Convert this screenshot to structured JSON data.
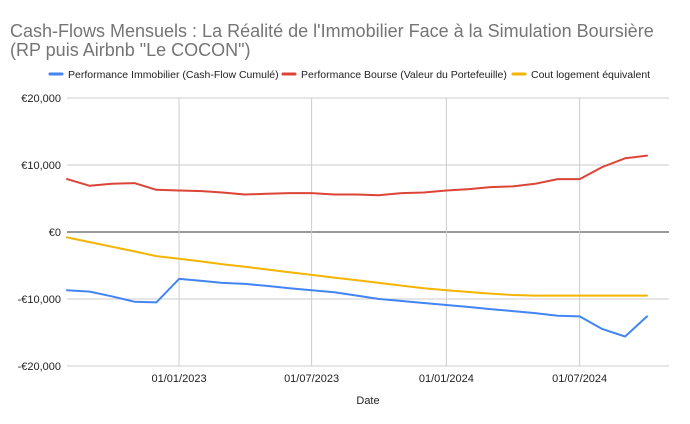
{
  "title": "Cash-Flows Mensuels : La Réalité de l'Immobilier Face à la Simulation Boursière (RP puis Airbnb \"Le COCON\")",
  "chart_data": {
    "type": "line",
    "title": "Cash-Flows Mensuels : La Réalité de l'Immobilier Face à la Simulation Boursière (RP puis Airbnb \"Le COCON\")",
    "xlabel": "Date",
    "ylabel": "",
    "ylim": [
      -20000,
      20000
    ],
    "xlim": [
      "2022-08-01",
      "2024-10-31"
    ],
    "grid": true,
    "legend": "top",
    "y_ticks": [
      {
        "value": 20000,
        "label": "€20,000"
      },
      {
        "value": 10000,
        "label": "€10,000"
      },
      {
        "value": 0,
        "label": "€0"
      },
      {
        "value": -10000,
        "label": "-€10,000"
      },
      {
        "value": -20000,
        "label": "-€20,000"
      }
    ],
    "x_ticks": [
      {
        "value": "2023-01-01",
        "label": "01/01/2023"
      },
      {
        "value": "2023-07-01",
        "label": "01/07/2023"
      },
      {
        "value": "2024-01-01",
        "label": "01/01/2024"
      },
      {
        "value": "2024-07-01",
        "label": "01/07/2024"
      }
    ],
    "series": [
      {
        "name": "Performance Immobilier (Cash-Flow Cumulé)",
        "color": "#4285f4",
        "points": [
          {
            "x": "2022-08-01",
            "y": -8700
          },
          {
            "x": "2022-09-01",
            "y": -8900
          },
          {
            "x": "2022-10-01",
            "y": -9600
          },
          {
            "x": "2022-11-01",
            "y": -10400
          },
          {
            "x": "2022-12-01",
            "y": -10500
          },
          {
            "x": "2023-01-01",
            "y": -7000
          },
          {
            "x": "2023-02-01",
            "y": -7300
          },
          {
            "x": "2023-03-01",
            "y": -7600
          },
          {
            "x": "2023-04-01",
            "y": -7750
          },
          {
            "x": "2023-05-01",
            "y": -8050
          },
          {
            "x": "2023-06-01",
            "y": -8400
          },
          {
            "x": "2023-07-01",
            "y": -8700
          },
          {
            "x": "2023-08-01",
            "y": -9000
          },
          {
            "x": "2023-09-01",
            "y": -9500
          },
          {
            "x": "2023-10-01",
            "y": -10000
          },
          {
            "x": "2023-11-01",
            "y": -10300
          },
          {
            "x": "2023-12-01",
            "y": -10600
          },
          {
            "x": "2024-01-01",
            "y": -10900
          },
          {
            "x": "2024-02-01",
            "y": -11200
          },
          {
            "x": "2024-03-01",
            "y": -11500
          },
          {
            "x": "2024-04-01",
            "y": -11800
          },
          {
            "x": "2024-05-01",
            "y": -12100
          },
          {
            "x": "2024-06-01",
            "y": -12500
          },
          {
            "x": "2024-07-01",
            "y": -12600
          },
          {
            "x": "2024-08-01",
            "y": -14500
          },
          {
            "x": "2024-09-01",
            "y": -15600
          },
          {
            "x": "2024-10-01",
            "y": -12600
          }
        ]
      },
      {
        "name": "Performance Bourse (Valeur du Portefeuille)",
        "color": "#db4437",
        "points": [
          {
            "x": "2022-08-01",
            "y": 7900
          },
          {
            "x": "2022-09-01",
            "y": 6900
          },
          {
            "x": "2022-10-01",
            "y": 7200
          },
          {
            "x": "2022-11-01",
            "y": 7300
          },
          {
            "x": "2022-12-01",
            "y": 6300
          },
          {
            "x": "2023-01-01",
            "y": 6200
          },
          {
            "x": "2023-02-01",
            "y": 6100
          },
          {
            "x": "2023-03-01",
            "y": 5900
          },
          {
            "x": "2023-04-01",
            "y": 5600
          },
          {
            "x": "2023-05-01",
            "y": 5700
          },
          {
            "x": "2023-06-01",
            "y": 5800
          },
          {
            "x": "2023-07-01",
            "y": 5800
          },
          {
            "x": "2023-08-01",
            "y": 5600
          },
          {
            "x": "2023-09-01",
            "y": 5600
          },
          {
            "x": "2023-10-01",
            "y": 5500
          },
          {
            "x": "2023-11-01",
            "y": 5800
          },
          {
            "x": "2023-12-01",
            "y": 5900
          },
          {
            "x": "2024-01-01",
            "y": 6200
          },
          {
            "x": "2024-02-01",
            "y": 6400
          },
          {
            "x": "2024-03-01",
            "y": 6700
          },
          {
            "x": "2024-04-01",
            "y": 6800
          },
          {
            "x": "2024-05-01",
            "y": 7200
          },
          {
            "x": "2024-06-01",
            "y": 7900
          },
          {
            "x": "2024-07-01",
            "y": 7900
          },
          {
            "x": "2024-08-01",
            "y": 9700
          },
          {
            "x": "2024-09-01",
            "y": 11000
          },
          {
            "x": "2024-10-01",
            "y": 11400
          }
        ]
      },
      {
        "name": "Cout logement équivalent",
        "color": "#f4b400",
        "points": [
          {
            "x": "2022-08-01",
            "y": -800
          },
          {
            "x": "2022-09-01",
            "y": -1500
          },
          {
            "x": "2022-10-01",
            "y": -2200
          },
          {
            "x": "2022-11-01",
            "y": -2900
          },
          {
            "x": "2022-12-01",
            "y": -3600
          },
          {
            "x": "2023-01-01",
            "y": -4000
          },
          {
            "x": "2023-02-01",
            "y": -4400
          },
          {
            "x": "2023-03-01",
            "y": -4800
          },
          {
            "x": "2023-04-01",
            "y": -5200
          },
          {
            "x": "2023-05-01",
            "y": -5600
          },
          {
            "x": "2023-06-01",
            "y": -6000
          },
          {
            "x": "2023-07-01",
            "y": -6400
          },
          {
            "x": "2023-08-01",
            "y": -6800
          },
          {
            "x": "2023-09-01",
            "y": -7200
          },
          {
            "x": "2023-10-01",
            "y": -7600
          },
          {
            "x": "2023-11-01",
            "y": -8000
          },
          {
            "x": "2023-12-01",
            "y": -8400
          },
          {
            "x": "2024-01-01",
            "y": -8700
          },
          {
            "x": "2024-02-01",
            "y": -8950
          },
          {
            "x": "2024-03-01",
            "y": -9200
          },
          {
            "x": "2024-04-01",
            "y": -9400
          },
          {
            "x": "2024-05-01",
            "y": -9500
          },
          {
            "x": "2024-06-01",
            "y": -9500
          },
          {
            "x": "2024-07-01",
            "y": -9500
          },
          {
            "x": "2024-08-01",
            "y": -9500
          },
          {
            "x": "2024-09-01",
            "y": -9500
          },
          {
            "x": "2024-10-01",
            "y": -9500
          }
        ]
      }
    ]
  }
}
